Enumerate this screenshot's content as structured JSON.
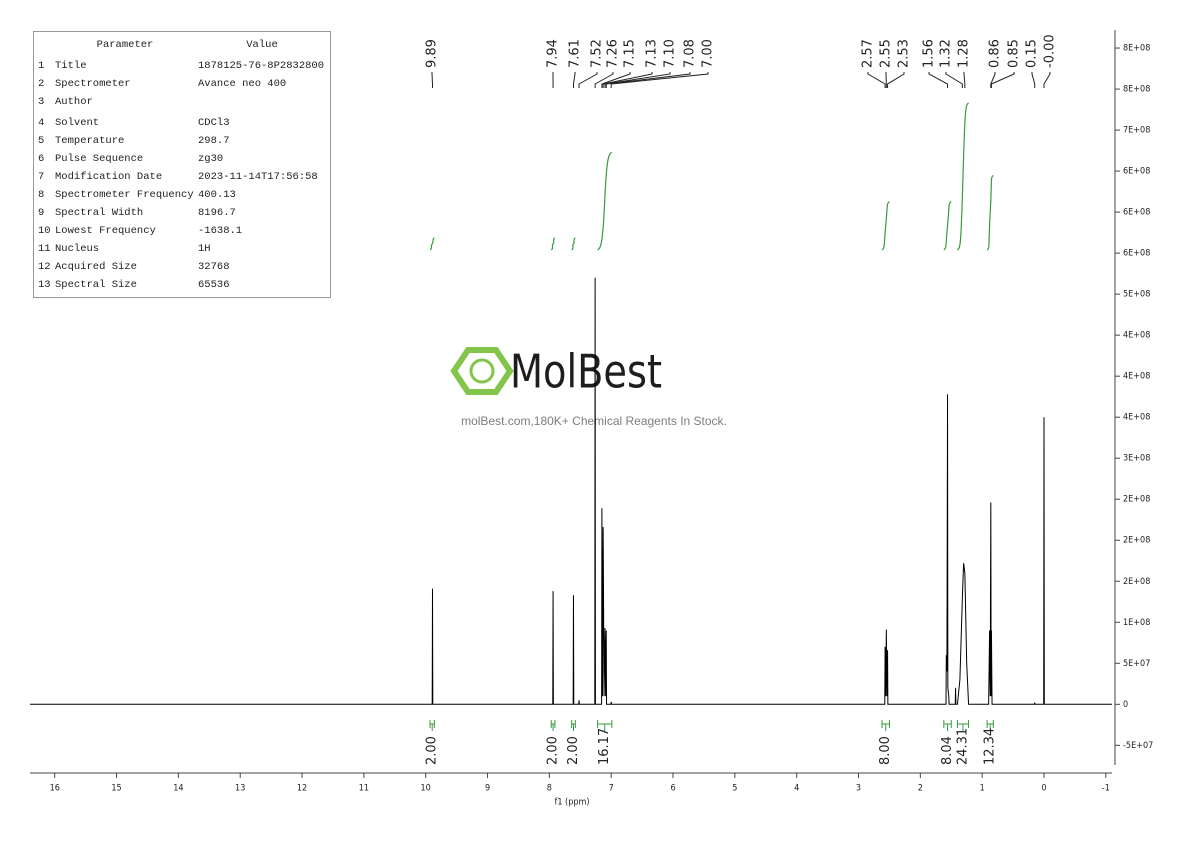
{
  "parameters_table": {
    "header": [
      "Parameter",
      "Value"
    ],
    "rows": [
      [
        1,
        "Title",
        "1878125-76-8P2832800"
      ],
      [
        2,
        "Spectrometer",
        "Avance neo 400"
      ],
      [
        3,
        "Author"
      ],
      [
        4,
        "Solvent",
        "CDCl3"
      ],
      [
        5,
        "Temperature",
        "298.7"
      ],
      [
        6,
        "Pulse Sequence",
        "zg30"
      ],
      [
        7,
        "Modification Date",
        "2023-11-14T17:56:58"
      ],
      [
        8,
        "Spectrometer Frequency",
        "400.13"
      ],
      [
        9,
        "Spectral Width",
        "8196.7"
      ],
      [
        10,
        "Lowest Frequency",
        "-1638.1"
      ],
      [
        11,
        "Nucleus",
        "1H"
      ],
      [
        12,
        "Acquired Size",
        "32768"
      ],
      [
        13,
        "Spectral Size",
        "65536"
      ]
    ]
  },
  "watermark": {
    "brand": "MolBest",
    "tagline": "molBest.com,180K+ Chemical Reagents In Stock."
  },
  "chart_data": {
    "type": "nmr",
    "x_label": "f1 (ppm)",
    "color": "#000000",
    "integral_color": "#3a9a3a",
    "xlim": [
      16.4,
      -1.1
    ],
    "xticks": [
      16,
      15,
      14,
      13,
      12,
      11,
      10,
      9,
      8,
      7,
      6,
      5,
      4,
      3,
      2,
      1,
      0,
      -1
    ],
    "ylim": [
      -74000000,
      822000000
    ],
    "yticks": [
      {
        "value": -50000000,
        "label": "-5E+07"
      },
      0,
      {
        "value": 50000000,
        "label": "5E+07"
      },
      {
        "value": 100000000,
        "label": "1E+08"
      },
      {
        "value": 150000000,
        "label": "2E+08"
      },
      {
        "value": 200000000,
        "label": "2E+08"
      },
      {
        "value": 250000000,
        "label": "2E+08"
      },
      {
        "value": 300000000,
        "label": "3E+08"
      },
      {
        "value": 350000000,
        "label": "4E+08"
      },
      {
        "value": 400000000,
        "label": "4E+08"
      },
      {
        "value": 450000000,
        "label": "4E+08"
      },
      {
        "value": 500000000,
        "label": "5E+08"
      },
      {
        "value": 550000000,
        "label": "6E+08"
      },
      {
        "value": 600000000,
        "label": "6E+08"
      },
      {
        "value": 650000000,
        "label": "6E+08"
      },
      {
        "value": 700000000,
        "label": "7E+08"
      },
      {
        "value": 750000000,
        "label": "8E+08"
      },
      {
        "value": 800000000,
        "label": "8E+08"
      }
    ],
    "x": [
      16.4,
      9.895,
      9.89,
      9.885,
      7.945,
      7.94,
      7.935,
      7.615,
      7.61,
      7.605,
      7.525,
      7.52,
      7.515,
      7.265,
      7.26,
      7.255,
      7.155,
      7.15,
      7.14,
      7.13,
      7.115,
      7.1,
      7.09,
      7.08,
      7.075,
      7.005,
      7.0,
      6.995,
      2.575,
      2.57,
      2.56,
      2.55,
      2.54,
      2.53,
      2.525,
      1.585,
      1.58,
      1.57,
      1.56,
      1.555,
      1.54,
      1.535,
      1.435,
      1.43,
      1.425,
      1.4,
      1.36,
      1.32,
      1.3,
      1.28,
      1.25,
      1.22,
      0.895,
      0.88,
      0.87,
      0.86,
      0.855,
      0.85,
      0.84,
      0.155,
      0.15,
      0.145,
      0.005,
      0.0,
      -0.005,
      -1.1
    ],
    "values": [
      0,
      0,
      141000000,
      0,
      0,
      138000000,
      0,
      0,
      133000000,
      0,
      0,
      5000000,
      0,
      0,
      520000000,
      0,
      0,
      239000000,
      10000000,
      216000000,
      10000000,
      93000000,
      10000000,
      90000000,
      0,
      0,
      3000000,
      0,
      0,
      70000000,
      10000000,
      91000000,
      10000000,
      66000000,
      0,
      0,
      60000000,
      40000000,
      378000000,
      20000000,
      10000000,
      0,
      0,
      20000000,
      0,
      0,
      30000000,
      130000000,
      172000000,
      160000000,
      50000000,
      0,
      0,
      90000000,
      10000000,
      246000000,
      10000000,
      90000000,
      0,
      0,
      2000000,
      0,
      0,
      350000000,
      0,
      0
    ],
    "peak_labels": [
      9.89,
      7.94,
      7.61,
      7.52,
      7.26,
      7.15,
      7.13,
      {
        "value": 7.1,
        "label": "7.10"
      },
      7.08,
      {
        "value": 7,
        "label": "7.00"
      },
      2.57,
      2.55,
      2.53,
      1.56,
      1.32,
      1.28,
      0.86,
      0.85,
      0.15,
      {
        "value": 0,
        "label": "-0.00"
      }
    ],
    "integrals": [
      {
        "from": 9.93,
        "to": 9.86,
        "value": 2,
        "label": "2.00"
      },
      {
        "from": 7.97,
        "to": 7.91,
        "value": 2,
        "label": "2.00"
      },
      {
        "from": 7.64,
        "to": 7.58,
        "value": 2,
        "label": "2.00"
      },
      {
        "from": 7.22,
        "to": 6.99,
        "value": 16.17
      },
      {
        "from": 2.62,
        "to": 2.5,
        "value": 8,
        "label": "8.00"
      },
      {
        "from": 1.62,
        "to": 1.5,
        "value": 8.04
      },
      {
        "from": 1.4,
        "to": 1.22,
        "value": 24.31
      },
      {
        "from": 0.92,
        "to": 0.82,
        "value": 12.34
      }
    ]
  }
}
